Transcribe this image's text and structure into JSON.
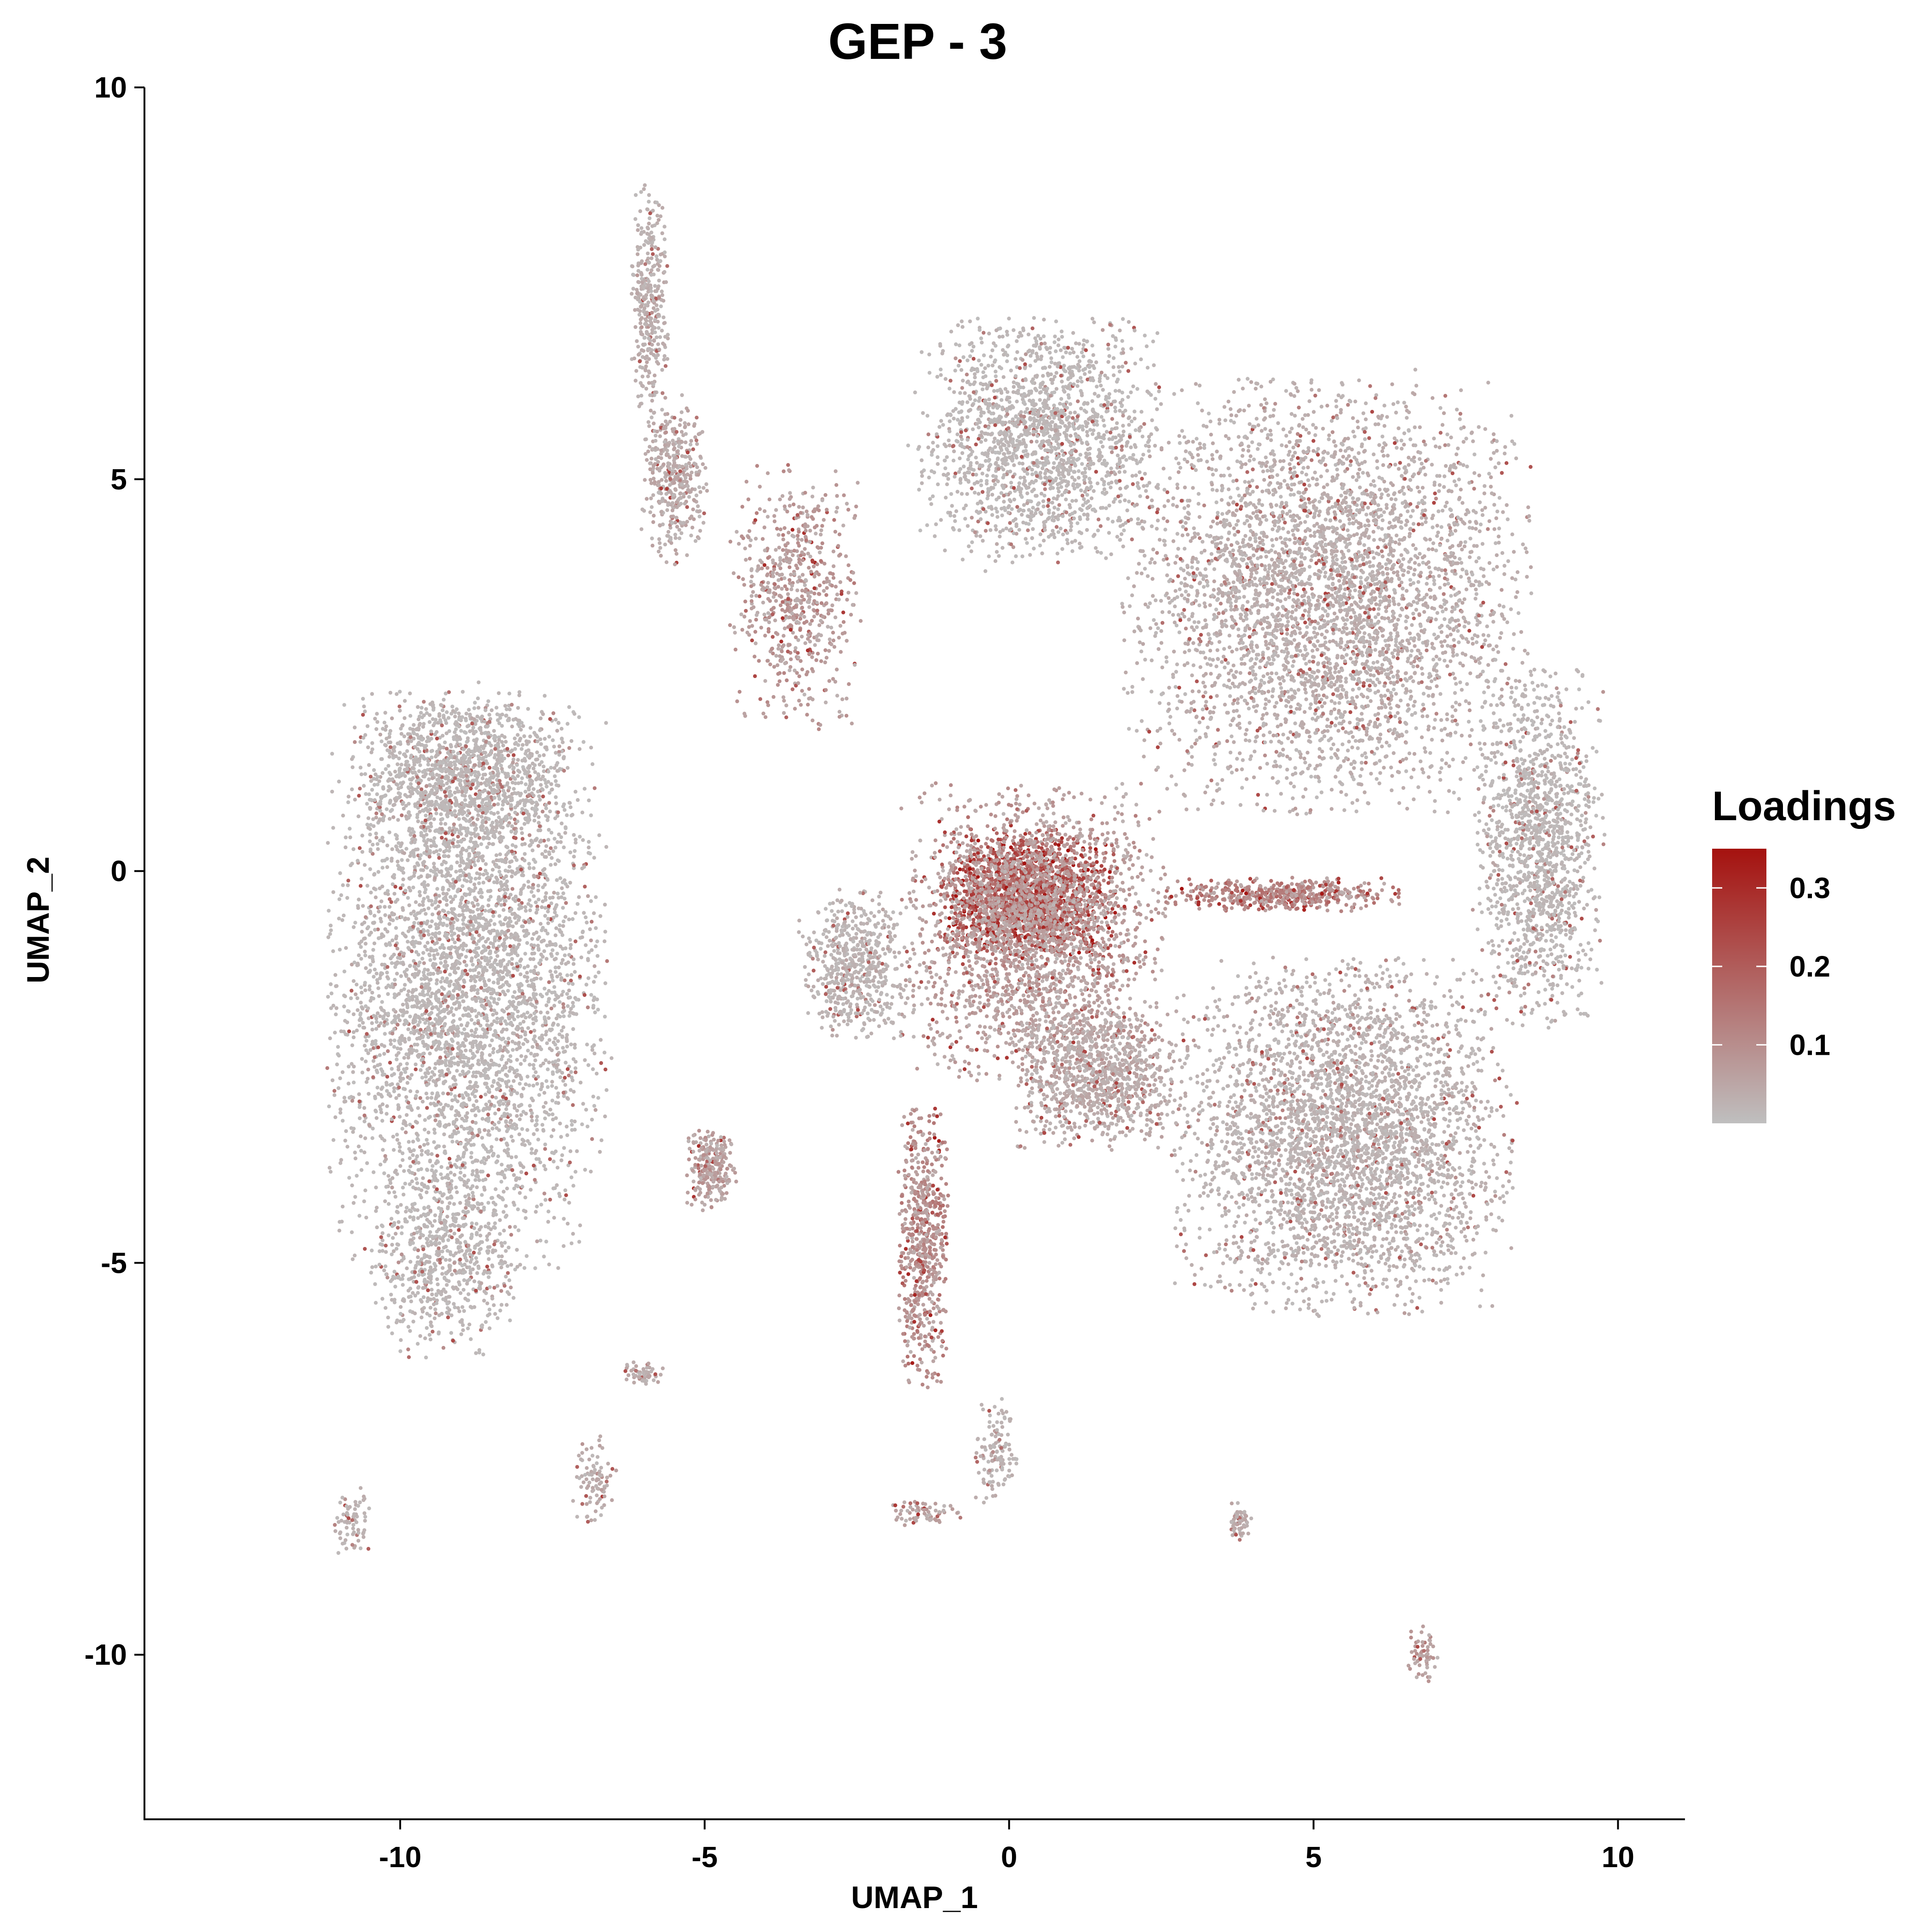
{
  "chart_data": {
    "type": "scatter",
    "title": "GEP - 3",
    "xlabel": "UMAP_1",
    "ylabel": "UMAP_2",
    "xlim": [
      -14.2,
      11.1
    ],
    "ylim": [
      -12.1,
      10
    ],
    "x_ticks": [
      -10,
      -5,
      0,
      5,
      10
    ],
    "y_ticks": [
      10,
      5,
      0,
      -5,
      -10
    ],
    "x_tick_labels": [
      "-10",
      "-5",
      "0",
      "5",
      "10"
    ],
    "y_tick_labels": [
      "10",
      "5",
      "0",
      "-5",
      "-10"
    ],
    "grid": false,
    "legend": {
      "title": "Loadings",
      "position": "right",
      "range": [
        0,
        0.35
      ],
      "ticks": [
        0.3,
        0.2,
        0.1
      ],
      "tick_labels": [
        "0.3",
        "0.2",
        "0.1"
      ],
      "low_color": "#bfbfbf",
      "high_color": "#a5120f"
    },
    "clusters": [
      {
        "region": "left-large",
        "center": [
          -8.9,
          -1.5
        ],
        "spread": [
          1.9,
          3.0
        ],
        "count": 4200,
        "loading": 0.02
      },
      {
        "region": "left-top",
        "center": [
          -8.9,
          1.2
        ],
        "spread": [
          1.5,
          0.9
        ],
        "count": 1200,
        "loading": 0.02
      },
      {
        "region": "left-lower",
        "center": [
          -9.3,
          -5.0
        ],
        "spread": [
          1.0,
          1.0
        ],
        "count": 600,
        "loading": 0.02
      },
      {
        "region": "top-center-blob",
        "center": [
          0.5,
          5.5
        ],
        "spread": [
          1.7,
          1.3
        ],
        "count": 1800,
        "loading": 0.02
      },
      {
        "region": "right-upper-lobe",
        "center": [
          5.2,
          3.5
        ],
        "spread": [
          2.8,
          2.3
        ],
        "count": 4200,
        "loading": 0.04
      },
      {
        "region": "right-far",
        "center": [
          8.7,
          0.3
        ],
        "spread": [
          0.9,
          1.9
        ],
        "count": 1400,
        "loading": 0.02
      },
      {
        "region": "right-lower-lobe",
        "center": [
          5.5,
          -3.4
        ],
        "spread": [
          2.3,
          1.9
        ],
        "count": 3600,
        "loading": 0.03
      },
      {
        "region": "center-hub",
        "center": [
          0.3,
          -0.3
        ],
        "spread": [
          1.2,
          0.7
        ],
        "count": 1800,
        "loading": 0.24
      },
      {
        "region": "center-ring",
        "center": [
          0.4,
          -0.8
        ],
        "spread": [
          1.8,
          1.6
        ],
        "count": 2200,
        "loading": 0.08
      },
      {
        "region": "center-lower",
        "center": [
          1.5,
          -2.6
        ],
        "spread": [
          1.2,
          0.8
        ],
        "count": 1000,
        "loading": 0.05
      },
      {
        "region": "left-of-center",
        "center": [
          -2.5,
          -1.2
        ],
        "spread": [
          0.8,
          0.8
        ],
        "count": 600,
        "loading": 0.03
      },
      {
        "region": "tail-upper-left",
        "center": [
          -3.5,
          3.5
        ],
        "spread": [
          0.9,
          1.4
        ],
        "count": 650,
        "loading": 0.09
      },
      {
        "region": "thin-arm-top",
        "center": [
          -5.9,
          7.2
        ],
        "spread": [
          0.25,
          1.3
        ],
        "count": 350,
        "loading": 0.04
      },
      {
        "region": "arm-mid",
        "center": [
          -5.5,
          5.0
        ],
        "spread": [
          0.45,
          0.9
        ],
        "count": 400,
        "loading": 0.05
      },
      {
        "region": "stream-down",
        "center": [
          -1.4,
          -4.8
        ],
        "spread": [
          0.35,
          1.5
        ],
        "count": 650,
        "loading": 0.12
      },
      {
        "region": "small-blob",
        "center": [
          -4.9,
          -3.8
        ],
        "spread": [
          0.35,
          0.45
        ],
        "count": 260,
        "loading": 0.08
      },
      {
        "region": "arm-right-line",
        "center": [
          4.5,
          -0.3
        ],
        "spread": [
          1.6,
          0.18
        ],
        "count": 500,
        "loading": 0.15
      },
      {
        "region": "island-a",
        "center": [
          -6.8,
          -7.8
        ],
        "spread": [
          0.3,
          0.5
        ],
        "count": 90,
        "loading": 0.05
      },
      {
        "region": "island-b",
        "center": [
          -6.0,
          -6.4
        ],
        "spread": [
          0.3,
          0.12
        ],
        "count": 60,
        "loading": 0.05
      },
      {
        "region": "island-c",
        "center": [
          -0.2,
          -7.4
        ],
        "spread": [
          0.3,
          0.55
        ],
        "count": 130,
        "loading": 0.03
      },
      {
        "region": "island-d",
        "center": [
          -1.4,
          -8.2
        ],
        "spread": [
          0.5,
          0.15
        ],
        "count": 70,
        "loading": 0.07
      },
      {
        "region": "island-e",
        "center": [
          3.8,
          -8.3
        ],
        "spread": [
          0.15,
          0.2
        ],
        "count": 60,
        "loading": 0.05
      },
      {
        "region": "island-f",
        "center": [
          6.8,
          -10.0
        ],
        "spread": [
          0.2,
          0.3
        ],
        "count": 60,
        "loading": 0.08
      },
      {
        "region": "island-g",
        "center": [
          -10.8,
          -8.3
        ],
        "spread": [
          0.25,
          0.4
        ],
        "count": 70,
        "loading": 0.03
      }
    ]
  }
}
